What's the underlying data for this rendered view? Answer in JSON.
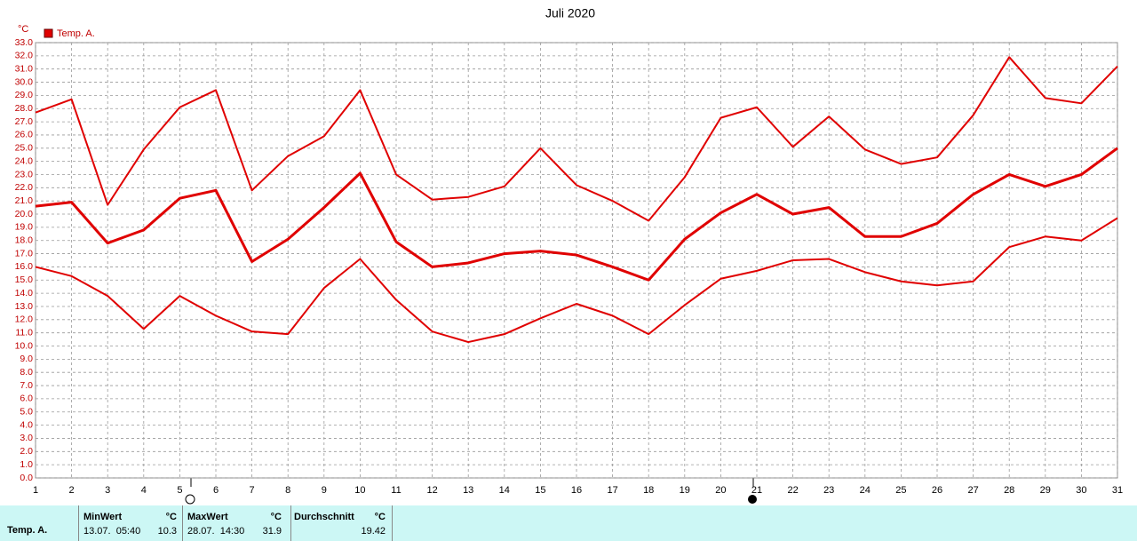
{
  "chart_data": {
    "type": "line",
    "title": "Juli 2020",
    "y_unit": "°C",
    "legend": "Temp. A.",
    "color": "#e00000",
    "grid": true,
    "x": [
      1,
      2,
      3,
      4,
      5,
      6,
      7,
      8,
      9,
      10,
      11,
      12,
      13,
      14,
      15,
      16,
      17,
      18,
      19,
      20,
      21,
      22,
      23,
      24,
      25,
      26,
      27,
      28,
      29,
      30,
      31
    ],
    "xlim": [
      1,
      31
    ],
    "xticks": [
      1,
      2,
      3,
      4,
      5,
      6,
      7,
      8,
      9,
      10,
      11,
      12,
      13,
      14,
      15,
      16,
      17,
      18,
      19,
      20,
      21,
      22,
      23,
      24,
      25,
      26,
      27,
      28,
      29,
      30,
      31
    ],
    "ylim": [
      0,
      33
    ],
    "yticks": [
      {
        "value": 0,
        "label": "0.0"
      },
      {
        "value": 1,
        "label": "1.0"
      },
      {
        "value": 2,
        "label": "2.0"
      },
      {
        "value": 3,
        "label": "3.0"
      },
      {
        "value": 4,
        "label": "4.0"
      },
      {
        "value": 5,
        "label": "5.0"
      },
      {
        "value": 6,
        "label": "6.0"
      },
      {
        "value": 7,
        "label": "7.0"
      },
      {
        "value": 8,
        "label": "8.0"
      },
      {
        "value": 9,
        "label": "9.0"
      },
      {
        "value": 10,
        "label": "10.0"
      },
      {
        "value": 11,
        "label": "11.0"
      },
      {
        "value": 12,
        "label": "12.0"
      },
      {
        "value": 13,
        "label": "13.0"
      },
      {
        "value": 14,
        "label": "14.0"
      },
      {
        "value": 15,
        "label": "15.0"
      },
      {
        "value": 16,
        "label": "16.0"
      },
      {
        "value": 17,
        "label": "17.0"
      },
      {
        "value": 18,
        "label": "18.0"
      },
      {
        "value": 19,
        "label": "19.0"
      },
      {
        "value": 20,
        "label": "20.0"
      },
      {
        "value": 21,
        "label": "21.0"
      },
      {
        "value": 22,
        "label": "22.0"
      },
      {
        "value": 23,
        "label": "23.0"
      },
      {
        "value": 24,
        "label": "24.0"
      },
      {
        "value": 25,
        "label": "25.0"
      },
      {
        "value": 26,
        "label": "26.0"
      },
      {
        "value": 27,
        "label": "27.0"
      },
      {
        "value": 28,
        "label": "28.0"
      },
      {
        "value": 29,
        "label": "29.0"
      },
      {
        "value": 30,
        "label": "30.0"
      },
      {
        "value": 31,
        "label": "31.0"
      },
      {
        "value": 32,
        "label": "32.0"
      },
      {
        "value": 33,
        "label": "33.0"
      }
    ],
    "series": [
      {
        "width": 2,
        "values": [
          27.7,
          28.7,
          20.7,
          24.9,
          28.1,
          29.4,
          21.8,
          24.4,
          25.9,
          29.4,
          23.0,
          21.1,
          21.3,
          22.1,
          25.0,
          22.2,
          21.0,
          19.5,
          22.8,
          27.3,
          28.1,
          25.1,
          27.4,
          24.9,
          23.8,
          24.3,
          27.5,
          31.9,
          28.8,
          28.4,
          31.2
        ]
      },
      {
        "width": 3,
        "values": [
          20.6,
          20.9,
          17.8,
          18.8,
          21.2,
          21.8,
          16.4,
          18.1,
          20.5,
          23.1,
          17.9,
          16.0,
          16.3,
          17.0,
          17.2,
          16.9,
          16.0,
          15.0,
          18.1,
          20.1,
          21.5,
          20.0,
          20.5,
          18.3,
          18.3,
          19.3,
          21.5,
          23.0,
          22.1,
          23.0,
          25.0
        ]
      },
      {
        "width": 2,
        "values": [
          16.0,
          15.3,
          13.8,
          11.3,
          13.8,
          12.3,
          11.1,
          10.9,
          14.4,
          16.6,
          13.5,
          11.1,
          10.3,
          10.9,
          12.1,
          13.2,
          12.3,
          10.9,
          13.1,
          15.1,
          15.7,
          16.5,
          16.6,
          15.6,
          14.9,
          14.6,
          14.9,
          17.5,
          18.3,
          18.0,
          19.7
        ]
      }
    ]
  },
  "summary": {
    "row_label": "Temp. A.",
    "columns": [
      {
        "title": "MinWert",
        "unit": "°C",
        "time": "13.07.  05:40",
        "value": "10.3"
      },
      {
        "title": "MaxWert",
        "unit": "°C",
        "time": "28.07.  14:30",
        "value": "31.9"
      },
      {
        "title": "Durchschnitt",
        "unit": "°C",
        "value": "19.42"
      }
    ]
  }
}
